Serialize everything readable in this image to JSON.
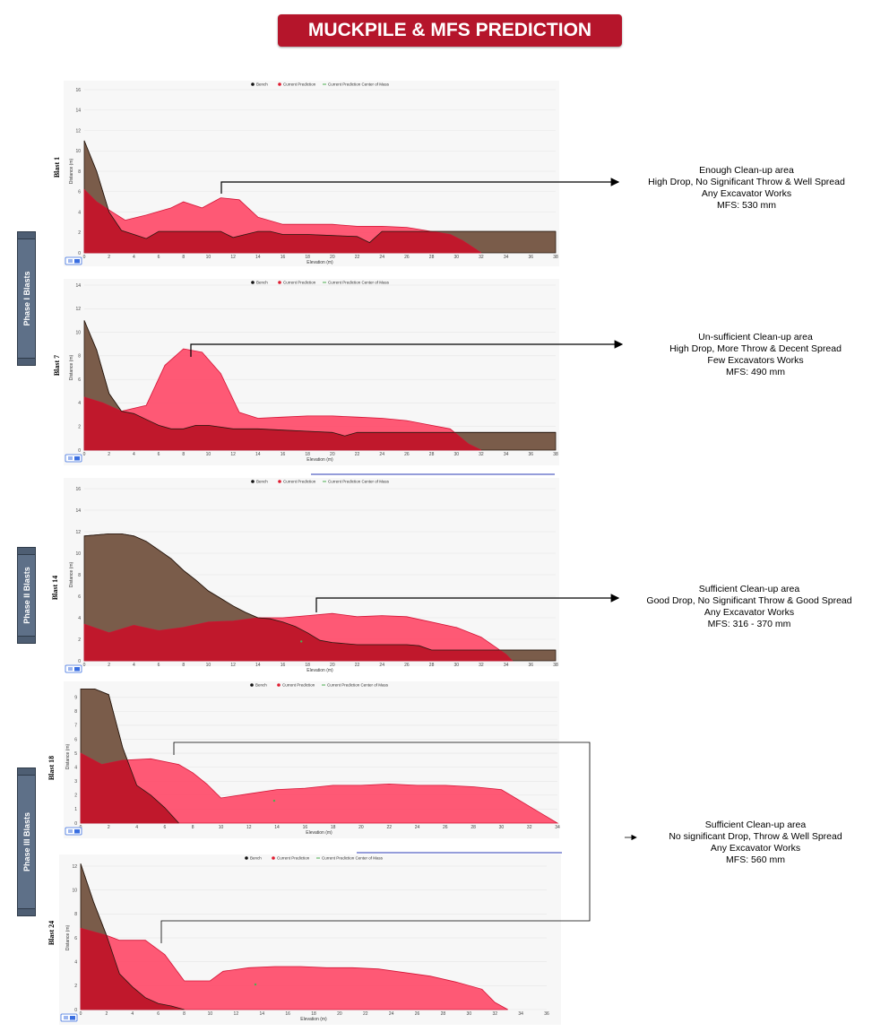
{
  "title": "MUCKPILE & MFS PREDICTION",
  "phases": [
    {
      "label": "Phase I Blasts"
    },
    {
      "label": "Phase II Blasts"
    },
    {
      "label": "Phase III Blasts"
    }
  ],
  "legend": [
    "Bench",
    "Current Prediction",
    "Current Prediction Center of Mass"
  ],
  "colors": {
    "bench": "#7a5c4a",
    "bench_line": "#2a1a10",
    "prediction": "#ff3d5e",
    "overlap": "#c0182c",
    "com": "#4caf50"
  },
  "annotations": [
    {
      "lines": [
        "Enough Clean-up area",
        "High Drop,  No Significant Throw & Well Spread",
        "Any Excavator Works",
        "MFS: 530 mm"
      ]
    },
    {
      "lines": [
        "Un-sufficient Clean-up area",
        "High Drop, More Throw & Decent Spread",
        "Few Excavators Works",
        "MFS: 490 mm"
      ]
    },
    {
      "lines": [
        "Sufficient Clean-up area",
        "Good Drop, No Significant Throw & Good Spread",
        "Any Excavator Works",
        "MFS: 316 - 370 mm"
      ]
    },
    {
      "lines": [
        "Sufficient Clean-up area",
        "No significant Drop, Throw & Well Spread",
        "Any Excavator Works",
        "MFS: 560 mm"
      ]
    }
  ],
  "chart_data": [
    {
      "type": "area",
      "label": "Blast 1",
      "xlabel": "Elevation (m)",
      "ylabel": "Distance (m)",
      "xlim": [
        0,
        38
      ],
      "ylim": [
        0,
        16
      ],
      "xticks": [
        0,
        2,
        4,
        6,
        8,
        10,
        12,
        14,
        16,
        18,
        20,
        22,
        24,
        26,
        28,
        30,
        32,
        34,
        36,
        38
      ],
      "yticks": [
        0,
        2,
        4,
        6,
        8,
        10,
        12,
        14,
        16
      ],
      "series": [
        {
          "name": "Bench",
          "points": [
            [
              0,
              11
            ],
            [
              1,
              8
            ],
            [
              2,
              4
            ],
            [
              3,
              2.2
            ],
            [
              4,
              1.8
            ],
            [
              5,
              1.4
            ],
            [
              6,
              2.1
            ],
            [
              8,
              2.1
            ],
            [
              10,
              2.1
            ],
            [
              11,
              2.1
            ],
            [
              12,
              1.5
            ],
            [
              13,
              1.8
            ],
            [
              14,
              2.1
            ],
            [
              15,
              2.1
            ],
            [
              16,
              1.8
            ],
            [
              18,
              1.8
            ],
            [
              20,
              1.7
            ],
            [
              22,
              1.6
            ],
            [
              23,
              1
            ],
            [
              24,
              2.1
            ],
            [
              26,
              2.1
            ],
            [
              28,
              2.1
            ],
            [
              30,
              2.1
            ],
            [
              32,
              2.1
            ],
            [
              34,
              2.1
            ],
            [
              36,
              2.1
            ],
            [
              38,
              2.1
            ]
          ]
        },
        {
          "name": "Current Prediction",
          "points": [
            [
              0,
              6.2
            ],
            [
              1,
              5
            ],
            [
              2,
              4.2
            ],
            [
              3.3,
              3.2
            ],
            [
              5,
              3.7
            ],
            [
              7,
              4.4
            ],
            [
              8,
              5
            ],
            [
              9.5,
              4.4
            ],
            [
              11,
              5.4
            ],
            [
              12.5,
              5.2
            ],
            [
              14,
              3.5
            ],
            [
              16,
              2.8
            ],
            [
              18,
              2.8
            ],
            [
              20,
              2.8
            ],
            [
              22,
              2.6
            ],
            [
              24,
              2.6
            ],
            [
              26,
              2.5
            ],
            [
              28,
              2.1
            ],
            [
              29.5,
              1.8
            ],
            [
              30.5,
              1.2
            ],
            [
              32,
              0
            ]
          ]
        }
      ]
    },
    {
      "type": "area",
      "label": "Blast 7",
      "xlabel": "Elevation (m)",
      "ylabel": "Distance (m)",
      "xlim": [
        0,
        38
      ],
      "ylim": [
        0,
        14
      ],
      "xticks": [
        0,
        2,
        4,
        6,
        8,
        10,
        12,
        14,
        16,
        18,
        20,
        22,
        24,
        26,
        28,
        30,
        32,
        34,
        36,
        38
      ],
      "yticks": [
        0,
        2,
        4,
        6,
        8,
        10,
        12,
        14
      ],
      "series": [
        {
          "name": "Bench",
          "points": [
            [
              0,
              11
            ],
            [
              1,
              8.5
            ],
            [
              2,
              4.8
            ],
            [
              3,
              3.3
            ],
            [
              4,
              3.1
            ],
            [
              5,
              2.6
            ],
            [
              6,
              2.1
            ],
            [
              7,
              1.8
            ],
            [
              8,
              1.8
            ],
            [
              9,
              2.1
            ],
            [
              10,
              2.1
            ],
            [
              12,
              1.8
            ],
            [
              14,
              1.8
            ],
            [
              16,
              1.7
            ],
            [
              18,
              1.6
            ],
            [
              20,
              1.5
            ],
            [
              21,
              1.2
            ],
            [
              22,
              1.5
            ],
            [
              24,
              1.5
            ],
            [
              26,
              1.5
            ],
            [
              28,
              1.5
            ],
            [
              30,
              1.5
            ],
            [
              32,
              1.5
            ],
            [
              34,
              1.5
            ],
            [
              36,
              1.5
            ],
            [
              38,
              1.5
            ]
          ]
        },
        {
          "name": "Current Prediction",
          "points": [
            [
              0,
              4.5
            ],
            [
              1.5,
              4
            ],
            [
              3,
              3.3
            ],
            [
              5,
              3.8
            ],
            [
              6.5,
              7.2
            ],
            [
              8,
              8.6
            ],
            [
              9.5,
              8.3
            ],
            [
              11,
              6.5
            ],
            [
              12.5,
              3.2
            ],
            [
              14,
              2.7
            ],
            [
              16,
              2.8
            ],
            [
              18,
              2.9
            ],
            [
              20,
              2.9
            ],
            [
              22,
              2.8
            ],
            [
              24,
              2.7
            ],
            [
              26,
              2.5
            ],
            [
              28,
              2.1
            ],
            [
              29.5,
              1.8
            ],
            [
              31,
              0.5
            ],
            [
              32,
              0
            ]
          ]
        }
      ]
    },
    {
      "type": "area",
      "label": "Blast 14",
      "xlabel": "Elevation (m)",
      "ylabel": "Distance (m)",
      "xlim": [
        0,
        38
      ],
      "ylim": [
        0,
        16
      ],
      "xticks": [
        0,
        2,
        4,
        6,
        8,
        10,
        12,
        14,
        16,
        18,
        20,
        22,
        24,
        26,
        28,
        30,
        32,
        34,
        36,
        38
      ],
      "yticks": [
        0,
        2,
        4,
        6,
        8,
        10,
        12,
        14,
        16
      ],
      "series": [
        {
          "name": "Bench",
          "points": [
            [
              0,
              11.6
            ],
            [
              2,
              11.8
            ],
            [
              3,
              11.8
            ],
            [
              4,
              11.6
            ],
            [
              5,
              11.1
            ],
            [
              6,
              10.3
            ],
            [
              7,
              9.5
            ],
            [
              8,
              8.4
            ],
            [
              9,
              7.5
            ],
            [
              10,
              6.5
            ],
            [
              11,
              5.8
            ],
            [
              12,
              5.1
            ],
            [
              13,
              4.5
            ],
            [
              14,
              4
            ],
            [
              15,
              3.9
            ],
            [
              16,
              3.6
            ],
            [
              17,
              3.2
            ],
            [
              18,
              2.6
            ],
            [
              19,
              1.9
            ],
            [
              20,
              1.7
            ],
            [
              22,
              1.5
            ],
            [
              24,
              1.5
            ],
            [
              26,
              1.5
            ],
            [
              27,
              1.4
            ],
            [
              28,
              1
            ],
            [
              30,
              1
            ],
            [
              32,
              1
            ],
            [
              34,
              1
            ],
            [
              36,
              1
            ],
            [
              38,
              1
            ]
          ]
        },
        {
          "name": "Current Prediction",
          "points": [
            [
              0,
              3.4
            ],
            [
              2,
              2.6
            ],
            [
              4,
              3.3
            ],
            [
              6,
              2.8
            ],
            [
              8,
              3.1
            ],
            [
              10,
              3.6
            ],
            [
              12,
              3.7
            ],
            [
              14,
              4
            ],
            [
              16,
              4
            ],
            [
              18,
              4.2
            ],
            [
              20,
              4.4
            ],
            [
              22,
              4.1
            ],
            [
              24,
              4.2
            ],
            [
              26,
              4.1
            ],
            [
              28,
              3.6
            ],
            [
              30,
              3.1
            ],
            [
              32,
              2.2
            ],
            [
              34,
              0.6
            ],
            [
              34.5,
              0
            ]
          ]
        },
        {
          "name": "Current Prediction Center of Mass",
          "points": [
            [
              17.5,
              1.8
            ]
          ]
        }
      ]
    },
    {
      "type": "area",
      "label": "Blast 18",
      "xlabel": "Elevation (m)",
      "ylabel": "Distance (m)",
      "xlim": [
        0,
        34
      ],
      "ylim": [
        0,
        9.5
      ],
      "xticks": [
        0,
        2,
        4,
        6,
        8,
        10,
        12,
        14,
        16,
        18,
        20,
        22,
        24,
        26,
        28,
        30,
        32,
        34
      ],
      "yticks": [
        0,
        1,
        2,
        3,
        4,
        5,
        6,
        7,
        8,
        9
      ],
      "series": [
        {
          "name": "Bench",
          "points": [
            [
              0,
              9.6
            ],
            [
              1,
              9.6
            ],
            [
              2,
              9.2
            ],
            [
              3,
              5.4
            ],
            [
              4,
              2.7
            ],
            [
              5,
              2
            ],
            [
              6,
              1.1
            ],
            [
              7,
              0
            ]
          ]
        },
        {
          "name": "Current Prediction",
          "points": [
            [
              0,
              5
            ],
            [
              1.5,
              4.2
            ],
            [
              3,
              4.5
            ],
            [
              5,
              4.6
            ],
            [
              7,
              4.2
            ],
            [
              8,
              3.6
            ],
            [
              9,
              2.8
            ],
            [
              10,
              1.8
            ],
            [
              12,
              2.1
            ],
            [
              14,
              2.4
            ],
            [
              16,
              2.5
            ],
            [
              18,
              2.7
            ],
            [
              20,
              2.7
            ],
            [
              22,
              2.8
            ],
            [
              24,
              2.7
            ],
            [
              26,
              2.7
            ],
            [
              28,
              2.6
            ],
            [
              30,
              2.4
            ],
            [
              32,
              1.2
            ],
            [
              33,
              0.6
            ],
            [
              34,
              0
            ]
          ]
        },
        {
          "name": "Current Prediction Center of Mass",
          "points": [
            [
              13.8,
              1.6
            ]
          ]
        }
      ]
    },
    {
      "type": "area",
      "label": "Blast 24",
      "xlabel": "Elevation (m)",
      "ylabel": "Distance (m)",
      "xlim": [
        0,
        36
      ],
      "ylim": [
        0,
        12
      ],
      "xticks": [
        0,
        2,
        4,
        6,
        8,
        10,
        12,
        14,
        16,
        18,
        20,
        22,
        24,
        26,
        28,
        30,
        32,
        34,
        36
      ],
      "yticks": [
        0,
        2,
        4,
        6,
        8,
        10,
        12
      ],
      "series": [
        {
          "name": "Bench",
          "points": [
            [
              0,
              12.2
            ],
            [
              1,
              9
            ],
            [
              2,
              6.2
            ],
            [
              3,
              3
            ],
            [
              4,
              1.9
            ],
            [
              5,
              1
            ],
            [
              6,
              0.5
            ],
            [
              7,
              0.3
            ],
            [
              8,
              0
            ]
          ]
        },
        {
          "name": "Current Prediction",
          "points": [
            [
              0,
              6.8
            ],
            [
              2,
              6.2
            ],
            [
              3,
              5.8
            ],
            [
              5,
              5.8
            ],
            [
              6.5,
              4.6
            ],
            [
              8,
              2.4
            ],
            [
              10,
              2.4
            ],
            [
              11,
              3.2
            ],
            [
              13,
              3.5
            ],
            [
              15,
              3.6
            ],
            [
              17,
              3.6
            ],
            [
              19,
              3.5
            ],
            [
              21,
              3.5
            ],
            [
              23,
              3.4
            ],
            [
              25,
              3.1
            ],
            [
              27,
              2.8
            ],
            [
              29,
              2.3
            ],
            [
              31,
              1.7
            ],
            [
              32,
              0.6
            ],
            [
              33,
              0
            ]
          ]
        },
        {
          "name": "Current Prediction Center of Mass",
          "points": [
            [
              13.5,
              2.1
            ]
          ]
        }
      ]
    }
  ]
}
